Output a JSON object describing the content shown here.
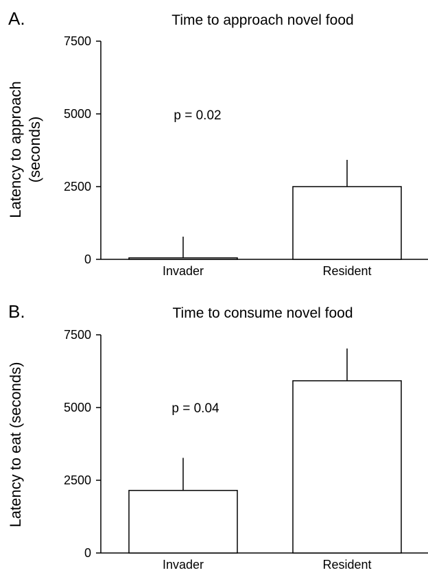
{
  "chart_data": [
    {
      "type": "bar",
      "panel_label": "A.",
      "title": "Time to approach novel food",
      "ylabel_lines": [
        "Latency to approach",
        "(seconds)"
      ],
      "categories": [
        "Invader",
        "Resident"
      ],
      "values": [
        50,
        2500
      ],
      "error_upper": [
        780,
        3420
      ],
      "ylim": [
        0,
        7500
      ],
      "yticks": [
        0,
        2500,
        5000,
        7500
      ],
      "ytick_labels": [
        "0",
        "2500",
        "5000",
        "7500"
      ],
      "annotation": "p = 0.02",
      "grid": false
    },
    {
      "type": "bar",
      "panel_label": "B.",
      "title": "Time to consume novel food",
      "ylabel_lines": [
        "Latency to eat (seconds)"
      ],
      "categories": [
        "Invader",
        "Resident"
      ],
      "values": [
        2150,
        5920
      ],
      "error_upper": [
        3270,
        7030
      ],
      "ylim": [
        0,
        7500
      ],
      "yticks": [
        0,
        2500,
        5000,
        7500
      ],
      "ytick_labels": [
        "0",
        "2500",
        "5000",
        "7500"
      ],
      "annotation": "p = 0.04",
      "grid": false
    }
  ]
}
